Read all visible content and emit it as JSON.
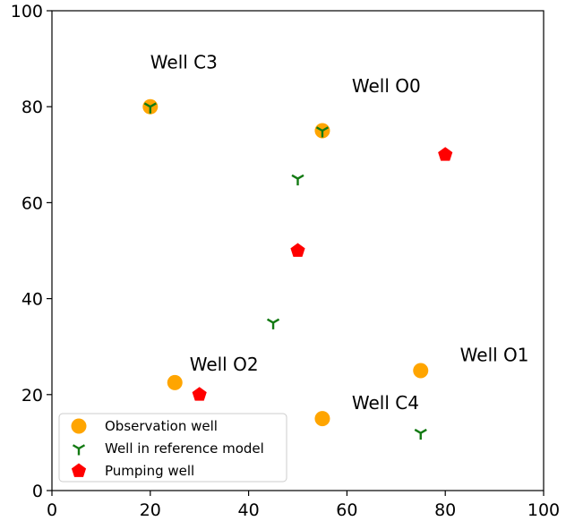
{
  "chart_data": {
    "type": "scatter",
    "title": "",
    "xlabel": "",
    "ylabel": "",
    "xlim": [
      0,
      100
    ],
    "ylim": [
      0,
      100
    ],
    "xticks": [
      0,
      20,
      40,
      60,
      80,
      100
    ],
    "yticks": [
      0,
      20,
      40,
      60,
      80,
      100
    ],
    "grid": false,
    "legend_position": "bottom-left",
    "colors": {
      "observation": "#FFA500",
      "reference": "#137a13",
      "pumping": "#FF0000"
    },
    "series": [
      {
        "name": "Observation well",
        "marker": "circle",
        "points": [
          [
            20,
            80
          ],
          [
            55,
            75
          ],
          [
            25,
            22.5
          ],
          [
            55,
            15
          ],
          [
            75,
            25
          ]
        ]
      },
      {
        "name": "Well in reference model",
        "marker": "tri_down",
        "points": [
          [
            20,
            80
          ],
          [
            55,
            75
          ],
          [
            50,
            65
          ],
          [
            45,
            35
          ],
          [
            75,
            12
          ]
        ]
      },
      {
        "name": "Pumping well",
        "marker": "pentagon",
        "points": [
          [
            80,
            70
          ],
          [
            50,
            50
          ],
          [
            30,
            20
          ]
        ]
      }
    ],
    "annotations": [
      {
        "text": "Well C3",
        "x": 20,
        "y": 88
      },
      {
        "text": "Well O0",
        "x": 61,
        "y": 83
      },
      {
        "text": "Well O1",
        "x": 83,
        "y": 27
      },
      {
        "text": "Well O2",
        "x": 28,
        "y": 25
      },
      {
        "text": "Well C4",
        "x": 61,
        "y": 17
      }
    ]
  }
}
